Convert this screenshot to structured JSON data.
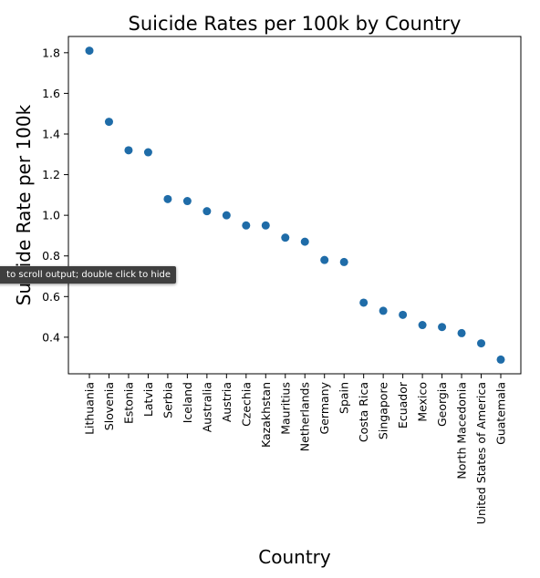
{
  "chart_data": {
    "type": "scatter",
    "title": "Suicide Rates per 100k by Country",
    "xlabel": "Country",
    "ylabel": "Suicide Rate per 100k",
    "categories": [
      "Lithuania",
      "Slovenia",
      "Estonia",
      "Latvia",
      "Serbia",
      "Iceland",
      "Australia",
      "Austria",
      "Czechia",
      "Kazakhstan",
      "Mauritius",
      "Netherlands",
      "Germany",
      "Spain",
      "Costa Rica",
      "Singapore",
      "Ecuador",
      "Mexico",
      "Georgia",
      "North Macedonia",
      "United States of America",
      "Guatemala"
    ],
    "values": [
      1.81,
      1.46,
      1.32,
      1.31,
      1.08,
      1.07,
      1.02,
      1.0,
      0.95,
      0.95,
      0.89,
      0.87,
      0.78,
      0.77,
      0.57,
      0.53,
      0.51,
      0.46,
      0.45,
      0.42,
      0.37,
      0.29
    ],
    "yticks": [
      "0.4",
      "0.6",
      "0.8",
      "1.0",
      "1.2",
      "1.4",
      "1.6",
      "1.8"
    ],
    "ylim": [
      0.22,
      1.88
    ],
    "grid": false,
    "marker_color": "#1f6ca8"
  },
  "overlay": {
    "tooltip_text": "to scroll output; double click to hide"
  }
}
